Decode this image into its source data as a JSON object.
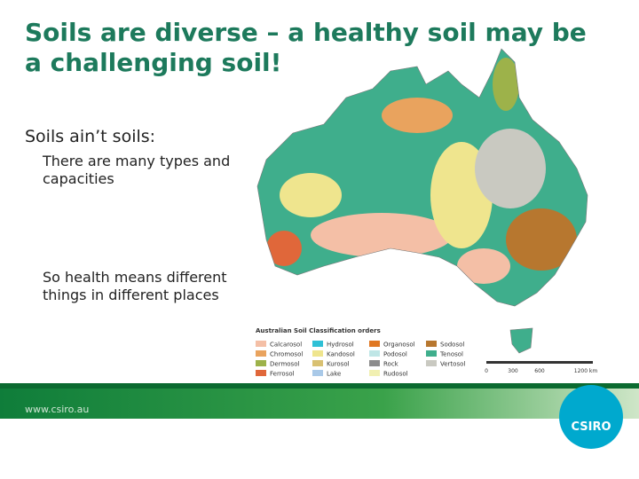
{
  "title": "Soils are diverse – a healthy soil may be a challenging soil!",
  "body": {
    "heading": "Soils ain’t soils:",
    "points": [
      "There are many types and capacities",
      "So health means different things in different places"
    ]
  },
  "legend": {
    "title": "Australian Soil Classification orders",
    "items": [
      {
        "label": "Calcarosol",
        "color": "#f4bfa6"
      },
      {
        "label": "Chromosol",
        "color": "#e9a35e"
      },
      {
        "label": "Dermosol",
        "color": "#9db24a"
      },
      {
        "label": "Ferrosol",
        "color": "#e0673a"
      },
      {
        "label": "Hydrosol",
        "color": "#2fc0d6"
      },
      {
        "label": "Kandosol",
        "color": "#efe58e"
      },
      {
        "label": "Kurosol",
        "color": "#d9c172"
      },
      {
        "label": "Lake",
        "color": "#a9c9e8"
      },
      {
        "label": "Organosol",
        "color": "#e07722"
      },
      {
        "label": "Podosol",
        "color": "#bfe6e6"
      },
      {
        "label": "Rock",
        "color": "#8c8c8c"
      },
      {
        "label": "Rudosol",
        "color": "#f1f0b2"
      },
      {
        "label": "Sodosol",
        "color": "#b7772f"
      },
      {
        "label": "Tenosol",
        "color": "#3fae8c"
      },
      {
        "label": "Vertosol",
        "color": "#c9c9c1"
      }
    ]
  },
  "scale": [
    "0",
    "300",
    "600",
    "1200 km"
  ],
  "footer": {
    "url": "www.csiro.au",
    "logo": "CSIRO"
  }
}
